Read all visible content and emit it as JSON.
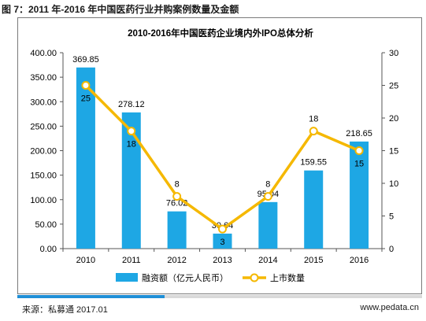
{
  "figure_title": "图 7：2011 年-2016 年中国医药行业并购案例数量及金额",
  "footer": {
    "source": "来源：私募通 2017.01",
    "site": "www.pedata.cn"
  },
  "colors": {
    "bar": "#1ea7e4",
    "line": "#f5b800",
    "marker_fill": "#ffffff",
    "axis": "#555555",
    "text": "#000000",
    "bottom_bar_fill": "#1f8fd6",
    "bottom_bar_track": "#d9d9d9"
  },
  "chart_data": {
    "type": "bar",
    "title": "2010-2016年中国医药企业境内外IPO总体分析",
    "categories": [
      "2010",
      "2011",
      "2012",
      "2013",
      "2014",
      "2015",
      "2016"
    ],
    "series": [
      {
        "name": "融资额（亿元人民币）",
        "type": "bar",
        "axis": "left",
        "values": [
          369.85,
          278.12,
          76.02,
          30.64,
          95.04,
          159.55,
          218.65
        ],
        "labels": [
          "369.85",
          "278.12",
          "76.02",
          "30.64",
          "95.04",
          "159.55",
          "218.65"
        ]
      },
      {
        "name": "上市数量",
        "type": "line",
        "axis": "right",
        "values": [
          25,
          18,
          8,
          3,
          8,
          18,
          15
        ],
        "labels": [
          "25",
          "18",
          "8",
          "3",
          "8",
          "18",
          "15"
        ]
      }
    ],
    "y_left": {
      "min": 0,
      "max": 400,
      "ticks": [
        0,
        50,
        100,
        150,
        200,
        250,
        300,
        350,
        400
      ],
      "tick_labels": [
        "0.00",
        "50.00",
        "100.00",
        "150.00",
        "200.00",
        "250.00",
        "300.00",
        "350.00",
        "400.00"
      ]
    },
    "y_right": {
      "min": 0,
      "max": 30,
      "ticks": [
        0,
        5,
        10,
        15,
        20,
        25,
        30
      ],
      "tick_labels": [
        "0",
        "5",
        "10",
        "15",
        "20",
        "25",
        "30"
      ]
    },
    "grid": false,
    "legend_position": "bottom"
  }
}
